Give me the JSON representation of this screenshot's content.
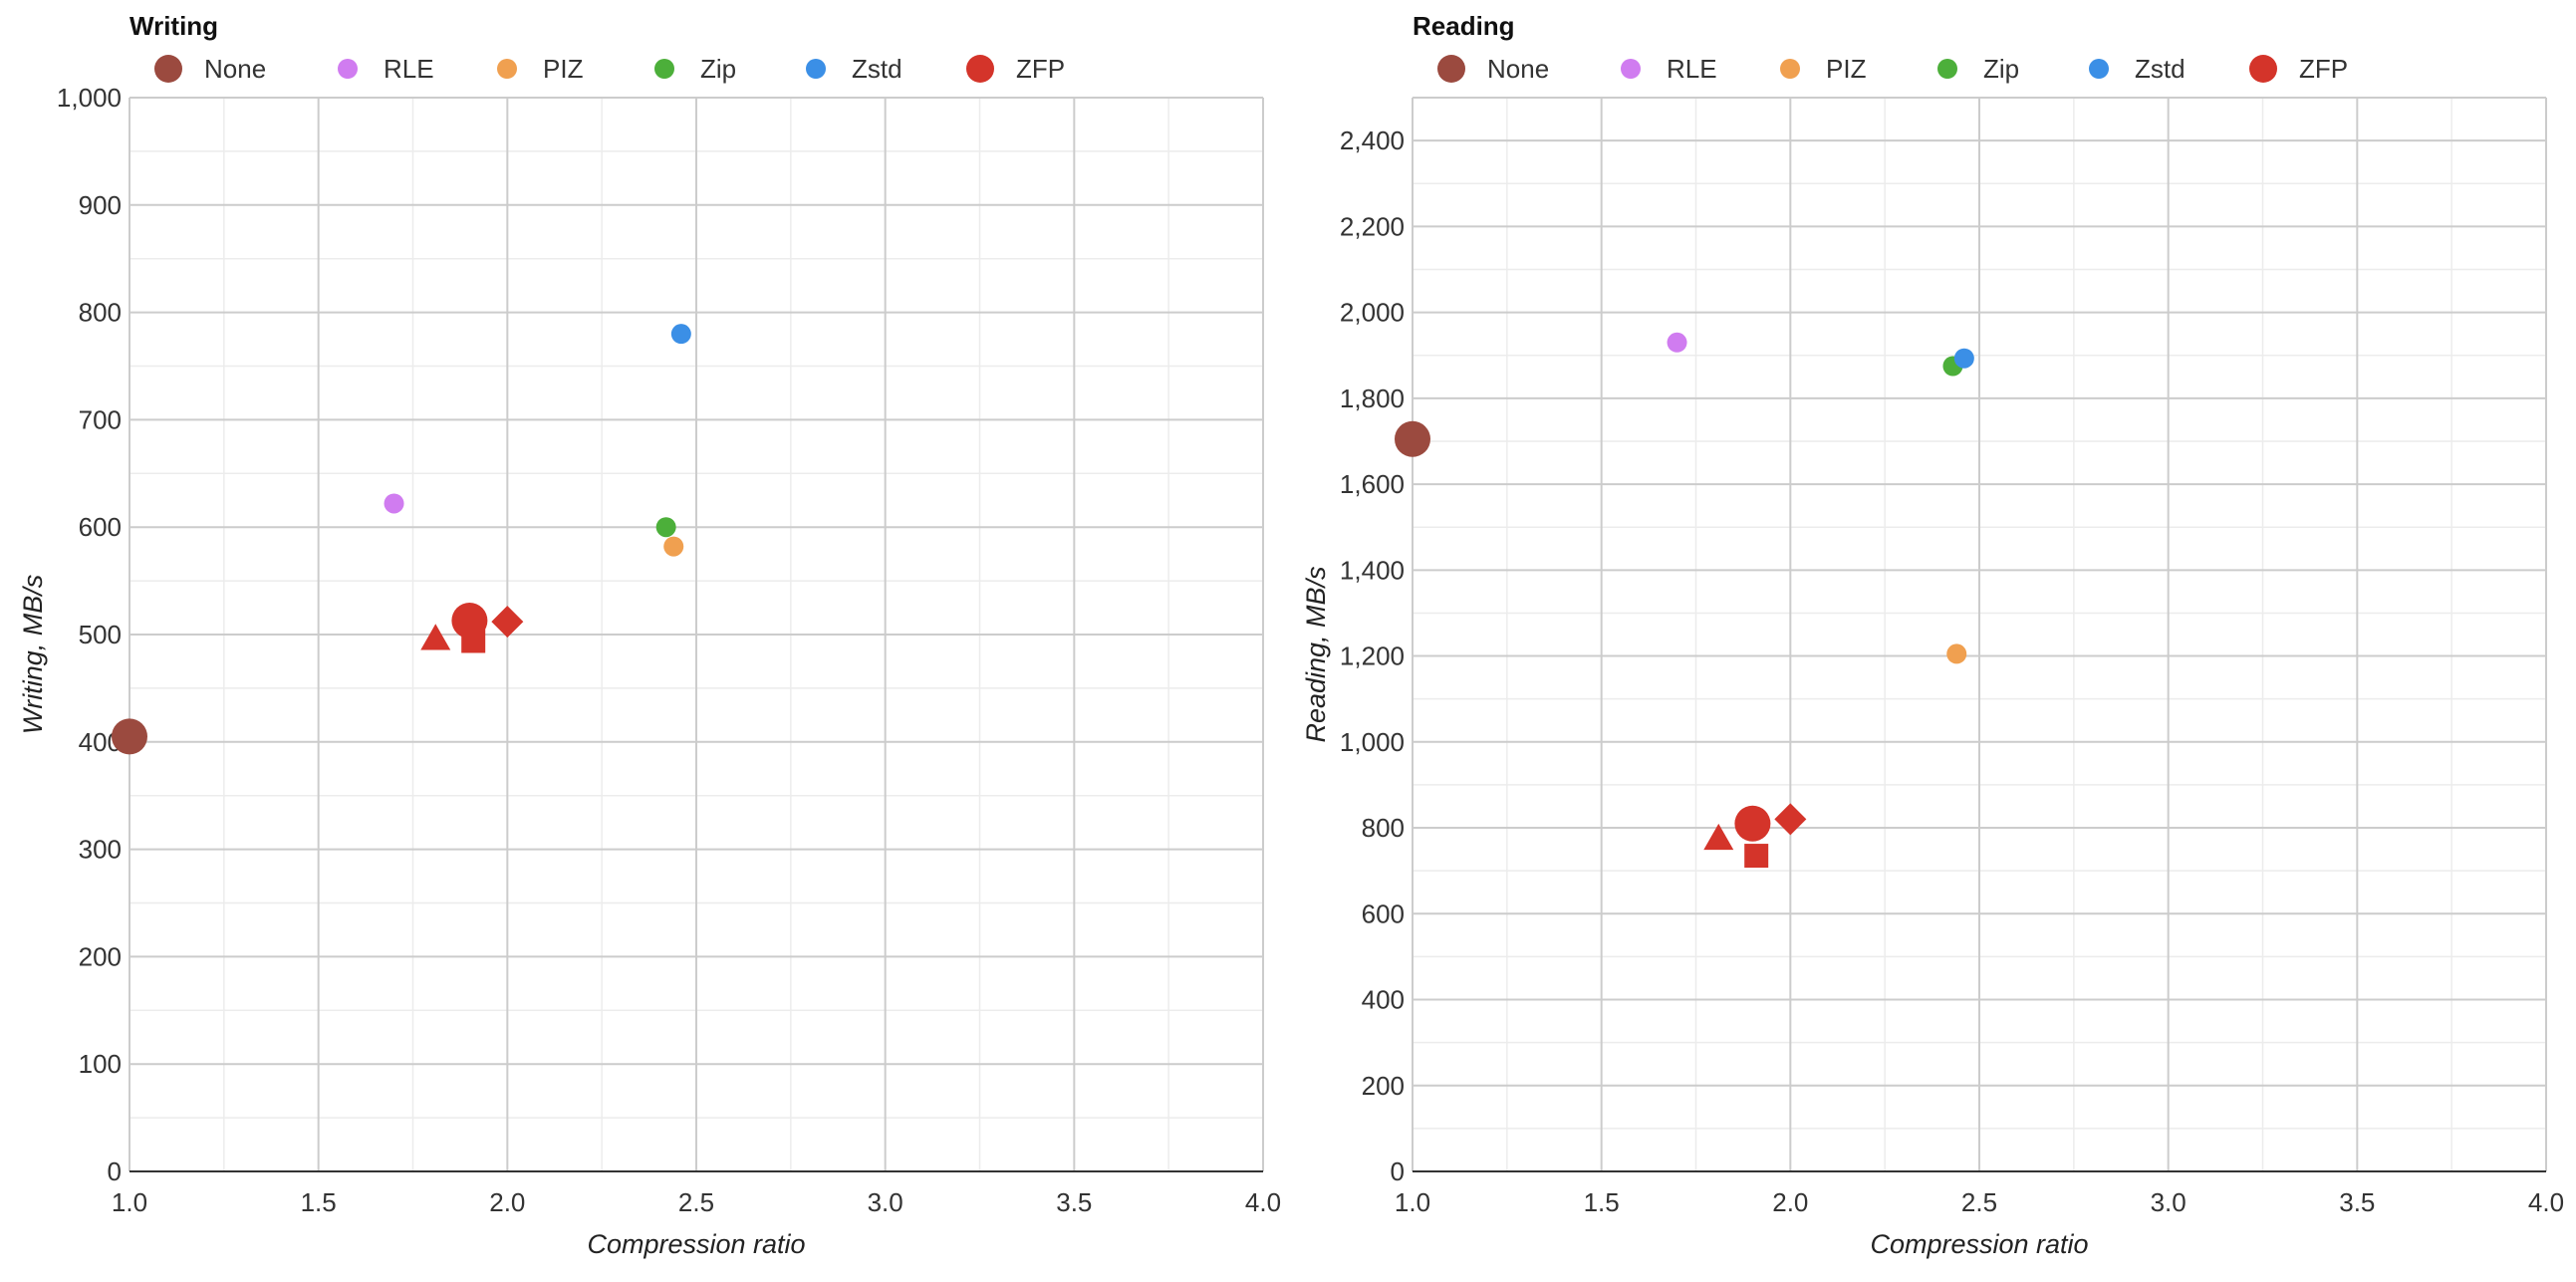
{
  "chart_data": [
    {
      "type": "scatter",
      "title": "Writing",
      "xlabel": "Compression ratio",
      "ylabel": "Writing, MB/s",
      "xlim": [
        1.0,
        4.0
      ],
      "ylim": [
        0,
        1000
      ],
      "xticks": [
        1.0,
        1.5,
        2.0,
        2.5,
        3.0,
        3.5,
        4.0
      ],
      "xtick_labels": [
        "1.0",
        "1.5",
        "2.0",
        "2.5",
        "3.0",
        "3.5",
        "4.0"
      ],
      "yticks": [
        0,
        100,
        200,
        300,
        400,
        500,
        600,
        700,
        800,
        900,
        1000
      ],
      "ytick_labels": [
        "0",
        "100",
        "200",
        "300",
        "400",
        "500",
        "600",
        "700",
        "800",
        "900",
        "1,000"
      ],
      "grid": true,
      "legend_position": "top-left",
      "series": [
        {
          "name": "None",
          "color": "#9b4a3f",
          "marker": "circle-large",
          "points": [
            {
              "x": 1.0,
              "y": 405
            }
          ]
        },
        {
          "name": "RLE",
          "color": "#d07cf0",
          "marker": "circle",
          "points": [
            {
              "x": 1.7,
              "y": 622
            }
          ]
        },
        {
          "name": "PIZ",
          "color": "#f0a050",
          "marker": "circle",
          "points": [
            {
              "x": 2.44,
              "y": 582
            }
          ]
        },
        {
          "name": "Zip",
          "color": "#4caf3a",
          "marker": "circle",
          "points": [
            {
              "x": 2.42,
              "y": 600
            }
          ]
        },
        {
          "name": "Zstd",
          "color": "#3b8fe6",
          "marker": "circle",
          "points": [
            {
              "x": 2.46,
              "y": 780
            }
          ]
        },
        {
          "name": "ZFP",
          "color": "#d4342a",
          "marker": "circle-large",
          "points": [
            {
              "x": 1.81,
              "y": 496,
              "shape": "triangle"
            },
            {
              "x": 1.9,
              "y": 513,
              "shape": "circle-large"
            },
            {
              "x": 1.91,
              "y": 494,
              "shape": "square"
            },
            {
              "x": 2.0,
              "y": 512,
              "shape": "diamond"
            }
          ]
        }
      ]
    },
    {
      "type": "scatter",
      "title": "Reading",
      "xlabel": "Compression ratio",
      "ylabel": "Reading, MB/s",
      "xlim": [
        1.0,
        4.0
      ],
      "ylim": [
        0,
        2500
      ],
      "xticks": [
        1.0,
        1.5,
        2.0,
        2.5,
        3.0,
        3.5,
        4.0
      ],
      "xtick_labels": [
        "1.0",
        "1.5",
        "2.0",
        "2.5",
        "3.0",
        "3.5",
        "4.0"
      ],
      "yticks": [
        0,
        200,
        400,
        600,
        800,
        1000,
        1200,
        1400,
        1600,
        1800,
        2000,
        2200,
        2400
      ],
      "ytick_labels": [
        "0",
        "200",
        "400",
        "600",
        "800",
        "1,000",
        "1,200",
        "1,400",
        "1,600",
        "1,800",
        "2,000",
        "2,200",
        "2,400"
      ],
      "grid": true,
      "legend_position": "top-left",
      "series": [
        {
          "name": "None",
          "color": "#9b4a3f",
          "marker": "circle-large",
          "points": [
            {
              "x": 1.0,
              "y": 1705
            }
          ]
        },
        {
          "name": "RLE",
          "color": "#d07cf0",
          "marker": "circle",
          "points": [
            {
              "x": 1.7,
              "y": 1930
            }
          ]
        },
        {
          "name": "PIZ",
          "color": "#f0a050",
          "marker": "circle",
          "points": [
            {
              "x": 2.44,
              "y": 1205
            }
          ]
        },
        {
          "name": "Zip",
          "color": "#4caf3a",
          "marker": "circle",
          "points": [
            {
              "x": 2.43,
              "y": 1875
            }
          ]
        },
        {
          "name": "Zstd",
          "color": "#3b8fe6",
          "marker": "circle",
          "points": [
            {
              "x": 2.46,
              "y": 1893
            }
          ]
        },
        {
          "name": "ZFP",
          "color": "#d4342a",
          "marker": "circle-large",
          "points": [
            {
              "x": 1.81,
              "y": 775,
              "shape": "triangle"
            },
            {
              "x": 1.9,
              "y": 810,
              "shape": "circle-large"
            },
            {
              "x": 1.91,
              "y": 735,
              "shape": "square"
            },
            {
              "x": 2.0,
              "y": 820,
              "shape": "diamond"
            }
          ]
        }
      ]
    }
  ]
}
